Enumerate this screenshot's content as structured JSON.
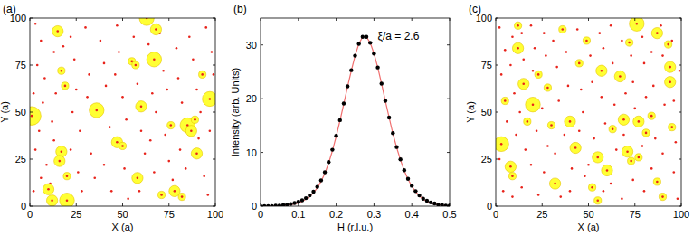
{
  "chart_data": [
    {
      "type": "scatter",
      "title": "(a)",
      "x_label": "X (a)",
      "y_label": "Y (a)",
      "xlim": [
        0,
        100
      ],
      "ylim": [
        0,
        100
      ],
      "xticks": [
        0,
        25,
        50,
        75,
        100
      ],
      "yticks": [
        0,
        25,
        50,
        75,
        100
      ],
      "series": [
        {
          "color": "#e8231b",
          "marker": "dot",
          "x": [
            3,
            6,
            4,
            8,
            2,
            7,
            5,
            3,
            9,
            6,
            2,
            13,
            14,
            12,
            13,
            11,
            18,
            22,
            24,
            25,
            23,
            27,
            22,
            26,
            28,
            30,
            32,
            31,
            33,
            35,
            38,
            40,
            41,
            43,
            40,
            44,
            47,
            48,
            46,
            50,
            52,
            51,
            53,
            56,
            58,
            60,
            62,
            59,
            64,
            66,
            68,
            65,
            67,
            70,
            72,
            74,
            73,
            75,
            77,
            79,
            80,
            82,
            81,
            84,
            86,
            88,
            90,
            92,
            91,
            94,
            96,
            98,
            99,
            97,
            95
          ],
          "values": [
            97,
            88,
            75,
            68,
            60,
            55,
            40,
            30,
            22,
            15,
            8,
            82,
            60,
            45,
            35,
            12,
            85,
            90,
            78,
            62,
            50,
            40,
            30,
            18,
            8,
            95,
            70,
            58,
            28,
            15,
            88,
            76,
            64,
            42,
            22,
            8,
            96,
            82,
            70,
            58,
            46,
            20,
            4,
            90,
            65,
            40,
            28,
            8,
            86,
            60,
            50,
            35,
            18,
            92,
            72,
            62,
            38,
            24,
            14,
            84,
            68,
            55,
            30,
            20,
            90,
            78,
            62,
            50,
            36,
            16,
            6,
            82,
            70,
            40,
            95
          ]
        },
        {
          "color": "#ffff33",
          "marker": "circle",
          "x": [
            1,
            10,
            12,
            15,
            17,
            19,
            17,
            16,
            20,
            36,
            47,
            50,
            55,
            57,
            58,
            60,
            63,
            67,
            68,
            76,
            78,
            82,
            85,
            87,
            89,
            90,
            93,
            97,
            71,
            20
          ],
          "values": [
            48,
            9,
            3,
            93,
            72,
            64,
            29,
            24,
            3,
            51,
            34,
            32,
            77,
            75,
            15,
            53,
            100,
            78,
            94,
            43,
            8,
            5,
            43,
            40,
            46,
            28,
            70,
            57,
            6,
            16
          ],
          "sizes": [
            5,
            3,
            3,
            3,
            2,
            2,
            3,
            3,
            4,
            4,
            3,
            2,
            2,
            2,
            3,
            3,
            4,
            4,
            3,
            2,
            3,
            2,
            4,
            3,
            2,
            3,
            2,
            4,
            2,
            2
          ]
        }
      ]
    },
    {
      "type": "line",
      "title": "(b)",
      "x_label": "H (r.l.u.)",
      "y_label": "Intensity (arb. Units)",
      "annotation": "ξ/a = 2.6",
      "xlim": [
        0,
        0.5
      ],
      "ylim": [
        0,
        35
      ],
      "xticks": [
        0,
        0.1,
        0.2,
        0.3,
        0.4,
        0.5
      ],
      "yticks": [
        0,
        10,
        20,
        30
      ],
      "x": [
        0,
        0.01,
        0.02,
        0.03,
        0.04,
        0.05,
        0.06,
        0.07,
        0.08,
        0.09,
        0.1,
        0.11,
        0.12,
        0.13,
        0.14,
        0.15,
        0.16,
        0.17,
        0.18,
        0.19,
        0.2,
        0.21,
        0.22,
        0.23,
        0.24,
        0.25,
        0.26,
        0.27,
        0.28,
        0.29,
        0.3,
        0.31,
        0.32,
        0.33,
        0.34,
        0.35,
        0.36,
        0.37,
        0.38,
        0.39,
        0.4,
        0.41,
        0.42,
        0.43,
        0.44,
        0.45,
        0.46,
        0.47,
        0.48,
        0.49,
        0.5
      ],
      "series": [
        {
          "type": "scatter",
          "color": "#000000",
          "marker": "circle",
          "line_style": "none",
          "values": [
            0,
            0,
            0,
            0,
            0.1,
            0.1,
            0.2,
            0.3,
            0.4,
            0.6,
            0.8,
            1.1,
            1.5,
            2.0,
            2.7,
            3.6,
            4.8,
            6.3,
            8.2,
            10.5,
            13.1,
            16.0,
            19.1,
            22.3,
            25.3,
            28.0,
            30.2,
            31.5,
            31.5,
            30.4,
            28.4,
            25.8,
            22.8,
            19.6,
            16.5,
            13.6,
            11.0,
            8.7,
            6.7,
            5.1,
            3.8,
            2.8,
            2.0,
            1.4,
            1.0,
            0.7,
            0.5,
            0.3,
            0.2,
            0.1,
            0.1
          ]
        },
        {
          "type": "line",
          "color": "#f07070",
          "marker": "none",
          "line_style": "solid",
          "values": [
            0,
            0,
            0,
            0,
            0,
            0.1,
            0.1,
            0.2,
            0.3,
            0.4,
            0.6,
            0.9,
            1.3,
            1.8,
            2.5,
            3.4,
            4.6,
            6.1,
            8.0,
            10.3,
            13.0,
            15.9,
            19.0,
            22.2,
            25.2,
            28.0,
            30.2,
            31.5,
            31.5,
            30.4,
            28.4,
            25.8,
            22.8,
            19.6,
            16.5,
            13.5,
            10.9,
            8.6,
            6.6,
            5.0,
            3.7,
            2.7,
            1.9,
            1.3,
            0.9,
            0.6,
            0.4,
            0.3,
            0.2,
            0.1,
            0
          ]
        }
      ]
    },
    {
      "type": "scatter",
      "title": "(c)",
      "x_label": "X (a)",
      "y_label": "Y (a)",
      "xlim": [
        0,
        100
      ],
      "ylim": [
        0,
        100
      ],
      "xticks": [
        0,
        25,
        50,
        75,
        100
      ],
      "yticks": [
        0,
        25,
        50,
        75,
        100
      ],
      "series": [
        {
          "color": "#e8231b",
          "marker": "dot",
          "x": [
            2,
            5,
            3,
            6,
            2,
            4,
            9,
            8,
            10,
            11,
            9,
            14,
            15,
            13,
            16,
            14,
            19,
            21,
            20,
            22,
            19,
            23,
            26,
            27,
            25,
            28,
            26,
            31,
            33,
            34,
            32,
            35,
            38,
            39,
            37,
            41,
            40,
            44,
            46,
            47,
            45,
            48,
            51,
            52,
            53,
            50,
            56,
            58,
            57,
            59,
            58,
            62,
            63,
            64,
            65,
            62,
            68,
            70,
            69,
            68,
            73,
            74,
            75,
            74,
            79,
            80,
            81,
            79,
            80,
            84,
            85,
            86,
            84,
            89,
            90,
            91,
            90,
            95,
            96,
            97,
            96,
            98,
            99
          ],
          "values": [
            95,
            83,
            70,
            45,
            25,
            8,
            90,
            75,
            60,
            38,
            5,
            92,
            78,
            50,
            30,
            10,
            96,
            84,
            72,
            40,
            22,
            6,
            92,
            80,
            52,
            32,
            18,
            88,
            74,
            56,
            28,
            5,
            82,
            64,
            38,
            20,
            8,
            94,
            62,
            50,
            40,
            16,
            80,
            66,
            36,
            22,
            92,
            84,
            58,
            44,
            8,
            96,
            76,
            54,
            30,
            12,
            88,
            60,
            38,
            4,
            80,
            66,
            52,
            14,
            90,
            76,
            58,
            32,
            8,
            82,
            64,
            36,
            20,
            96,
            80,
            54,
            28,
            88,
            56,
            34,
            18,
            4,
            72
          ]
        },
        {
          "color": "#ffff33",
          "marker": "circle",
          "x": [
            3,
            5,
            8,
            9,
            12,
            12,
            15,
            17,
            20,
            23,
            28,
            30,
            32,
            36,
            40,
            43,
            45,
            49,
            52,
            55,
            55,
            57,
            60,
            67,
            69,
            71,
            73,
            76,
            77,
            77,
            81,
            84,
            87,
            87,
            90,
            94,
            94,
            95,
            93,
            72,
            63
          ],
          "values": [
            33,
            56,
            21,
            16,
            84,
            96,
            65,
            45,
            54,
            70,
            63,
            43,
            12,
            94,
            45,
            31,
            76,
            88,
            10,
            26,
            3,
            72,
            19,
            69,
            46,
            29,
            24,
            97,
            45,
            26,
            39,
            48,
            92,
            13,
            5,
            74,
            66,
            42,
            86,
            87,
            41
          ],
          "sizes": [
            4,
            2,
            3,
            2,
            3,
            2,
            3,
            2,
            4,
            2,
            2,
            2,
            3,
            2,
            3,
            3,
            2,
            2,
            2,
            3,
            2,
            3,
            3,
            3,
            3,
            3,
            2,
            4,
            3,
            2,
            2,
            2,
            3,
            2,
            2,
            3,
            3,
            2,
            2,
            2,
            2
          ]
        }
      ]
    }
  ]
}
